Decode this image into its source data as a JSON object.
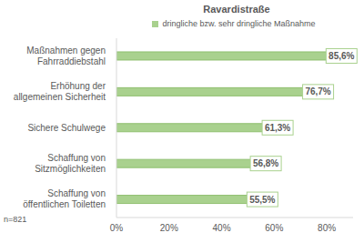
{
  "chart_data": {
    "type": "bar",
    "orientation": "horizontal",
    "title": "Ravardistraße",
    "categories": [
      "Maßnahmen gegen Fahrraddiebstahl",
      "Erhöhung der allgemeinen Sicherheit",
      "Sichere Schulwege",
      "Schaffung von Sitzmöglichkeiten",
      "Schaffung von öffentlichen Toiletten"
    ],
    "series": [
      {
        "name": "dringliche bzw. sehr dringliche Maßnahme",
        "color": "#a9d18e",
        "values": [
          85.6,
          76.7,
          61.3,
          56.8,
          55.5
        ],
        "value_labels": [
          "85,6%",
          "76,7%",
          "61,3%",
          "56,8%",
          "55,5%"
        ]
      }
    ],
    "xlim": [
      0,
      90
    ],
    "xticks": [
      {
        "value": 0,
        "label": "0%"
      },
      {
        "value": 20,
        "label": "20%"
      },
      {
        "value": 40,
        "label": "40%"
      },
      {
        "value": 60,
        "label": "60%"
      },
      {
        "value": 80,
        "label": "80%"
      }
    ],
    "grid": false,
    "legend": "top",
    "data_labels": true,
    "annotation": "n=821"
  }
}
